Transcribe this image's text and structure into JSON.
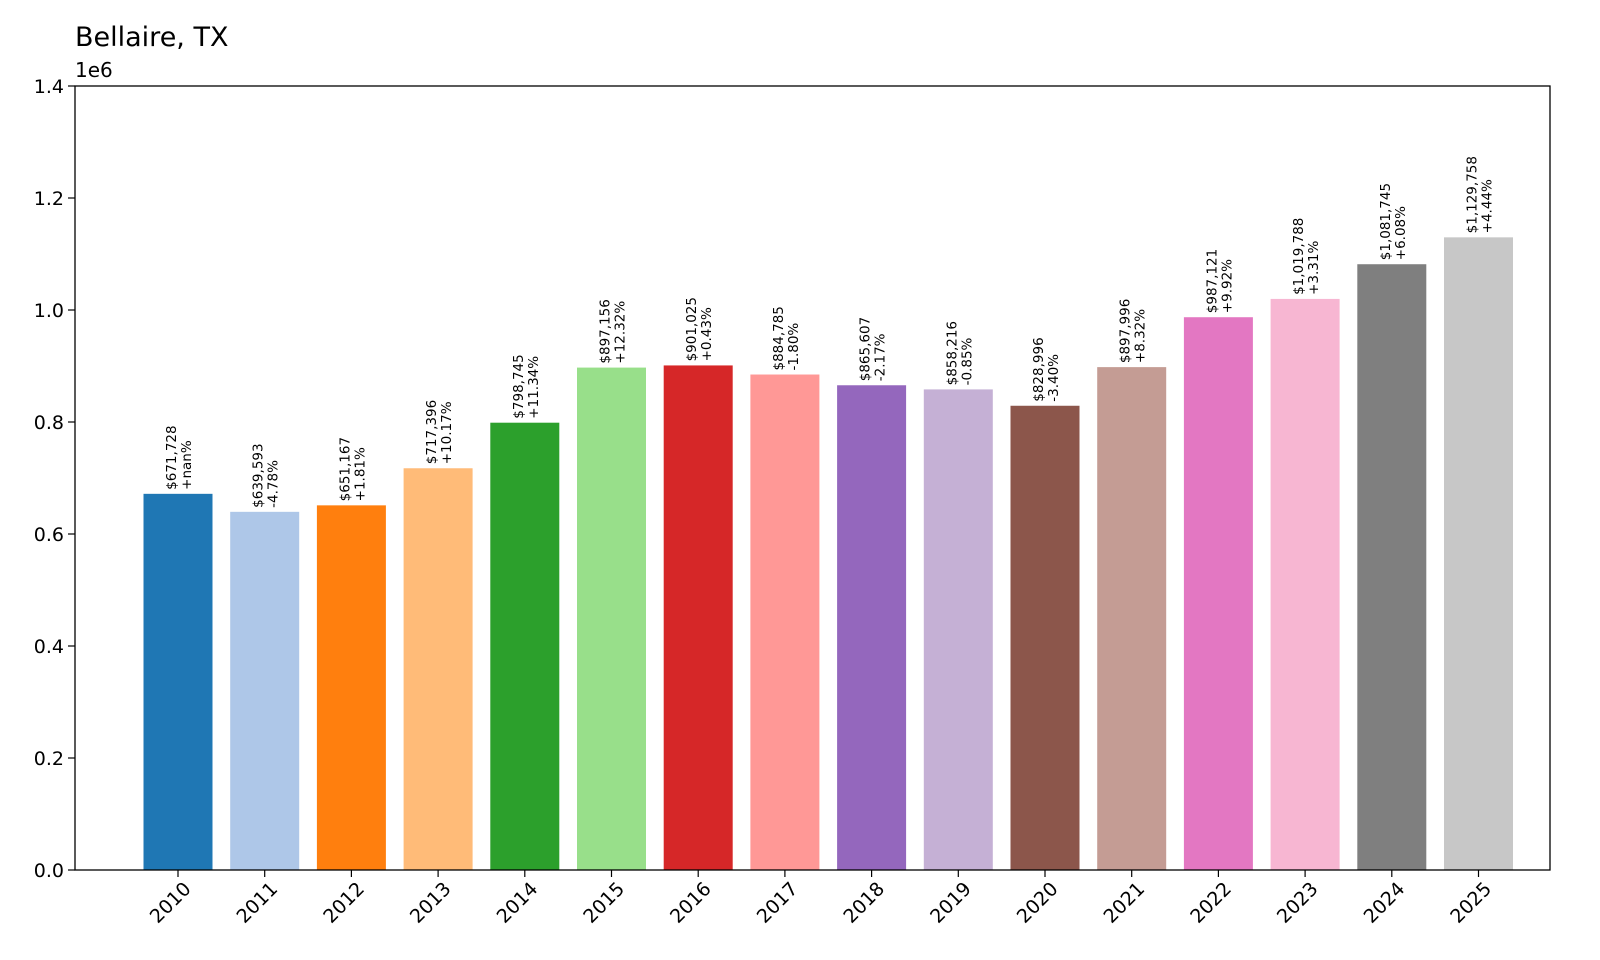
{
  "chart_data": {
    "type": "bar",
    "title": "Bellaire, TX",
    "xlabel": "",
    "ylabel": "",
    "y_offset_label": "1e6",
    "ylim": [
      0,
      1.4
    ],
    "yticks": [
      0.0,
      0.2,
      0.4,
      0.6,
      0.8,
      1.0,
      1.2,
      1.4
    ],
    "ytick_labels": [
      "0.0",
      "0.2",
      "0.4",
      "0.6",
      "0.8",
      "1.0",
      "1.2",
      "1.4"
    ],
    "grid": false,
    "legend": "none",
    "categories": [
      "2010",
      "2011",
      "2012",
      "2013",
      "2014",
      "2015",
      "2016",
      "2017",
      "2018",
      "2019",
      "2020",
      "2021",
      "2022",
      "2023",
      "2024",
      "2025"
    ],
    "values": [
      671728,
      639593,
      651167,
      717396,
      798745,
      897156,
      901025,
      884785,
      865607,
      858216,
      828996,
      897996,
      987121,
      1019788,
      1081745,
      1129758
    ],
    "value_labels": [
      "$671,728",
      "$639,593",
      "$651,167",
      "$717,396",
      "$798,745",
      "$897,156",
      "$901,025",
      "$884,785",
      "$865,607",
      "$858,216",
      "$828,996",
      "$897,996",
      "$987,121",
      "$1,019,788",
      "$1,081,745",
      "$1,129,758"
    ],
    "change_labels": [
      "+nan%",
      "-4.78%",
      "+1.81%",
      "+10.17%",
      "+11.34%",
      "+12.32%",
      "+0.43%",
      "-1.80%",
      "-2.17%",
      "-0.85%",
      "-3.40%",
      "+8.32%",
      "+9.92%",
      "+3.31%",
      "+6.08%",
      "+4.44%"
    ],
    "colors": [
      "#1f77b4",
      "#aec7e8",
      "#ff7f0e",
      "#ffbb78",
      "#2ca02c",
      "#98df8a",
      "#d62728",
      "#ff9896",
      "#9467bd",
      "#c5b0d5",
      "#8c564b",
      "#c49c94",
      "#e377c2",
      "#f7b6d2",
      "#7f7f7f",
      "#c7c7c7"
    ]
  }
}
